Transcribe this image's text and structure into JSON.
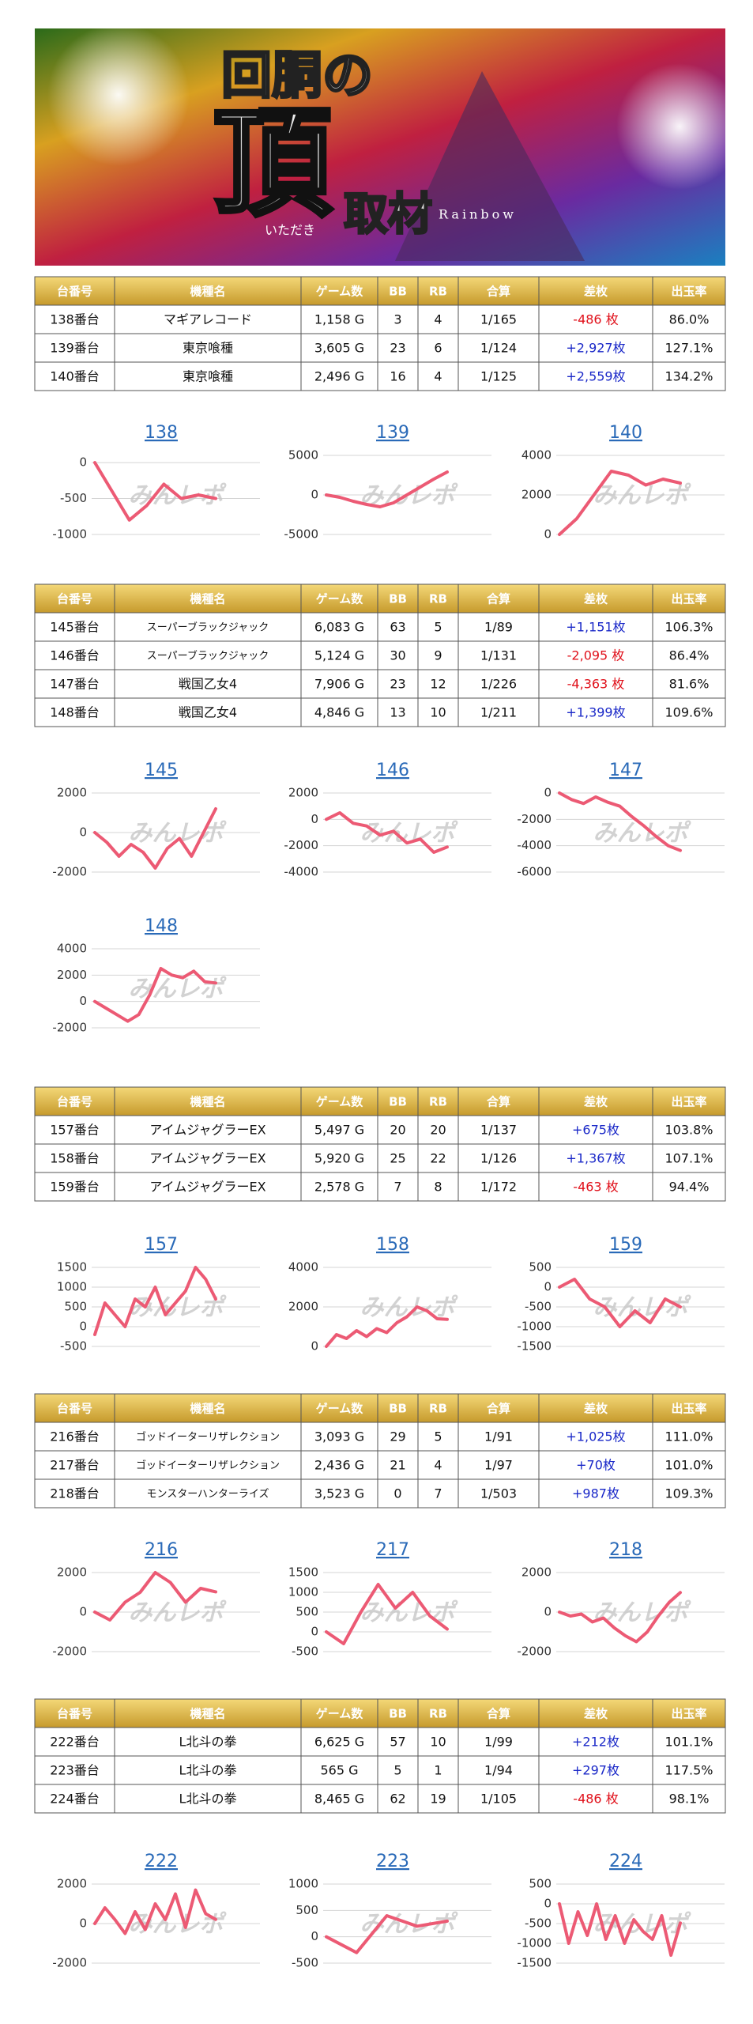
{
  "header": {
    "title_top": "回胴の",
    "title_main": "頂",
    "title_sub": "取材",
    "reading": "いただき",
    "brand": "Rainbow"
  },
  "table_header": [
    "台番号",
    "機種名",
    "ゲーム数",
    "BB",
    "RB",
    "合算",
    "差枚",
    "出玉率"
  ],
  "tables": [
    {
      "rows": [
        [
          "138番台",
          "マギアレコード",
          "1,158 G",
          "3",
          "4",
          "1/165",
          "-486 枚",
          "86.0%"
        ],
        [
          "139番台",
          "東京喰種",
          "3,605 G",
          "23",
          "6",
          "1/124",
          "+2,927枚",
          "127.1%"
        ],
        [
          "140番台",
          "東京喰種",
          "2,496 G",
          "16",
          "4",
          "1/125",
          "+2,559枚",
          "134.2%"
        ]
      ]
    },
    {
      "rows": [
        [
          "145番台",
          "スーパーブラックジャック",
          "6,083 G",
          "63",
          "5",
          "1/89",
          "+1,151枚",
          "106.3%"
        ],
        [
          "146番台",
          "スーパーブラックジャック",
          "5,124 G",
          "30",
          "9",
          "1/131",
          "-2,095 枚",
          "86.4%"
        ],
        [
          "147番台",
          "戦国乙女4",
          "7,906 G",
          "23",
          "12",
          "1/226",
          "-4,363 枚",
          "81.6%"
        ],
        [
          "148番台",
          "戦国乙女4",
          "4,846 G",
          "13",
          "10",
          "1/211",
          "+1,399枚",
          "109.6%"
        ]
      ]
    },
    {
      "rows": [
        [
          "157番台",
          "アイムジャグラーEX",
          "5,497 G",
          "20",
          "20",
          "1/137",
          "+675枚",
          "103.8%"
        ],
        [
          "158番台",
          "アイムジャグラーEX",
          "5,920 G",
          "25",
          "22",
          "1/126",
          "+1,367枚",
          "107.1%"
        ],
        [
          "159番台",
          "アイムジャグラーEX",
          "2,578 G",
          "7",
          "8",
          "1/172",
          "-463 枚",
          "94.4%"
        ]
      ]
    },
    {
      "rows": [
        [
          "216番台",
          "ゴッドイーターリザレクション",
          "3,093 G",
          "29",
          "5",
          "1/91",
          "+1,025枚",
          "111.0%"
        ],
        [
          "217番台",
          "ゴッドイーターリザレクション",
          "2,436 G",
          "21",
          "4",
          "1/97",
          "+70枚",
          "101.0%"
        ],
        [
          "218番台",
          "モンスターハンターライズ",
          "3,523 G",
          "0",
          "7",
          "1/503",
          "+987枚",
          "109.3%"
        ]
      ]
    },
    {
      "rows": [
        [
          "222番台",
          "L北斗の拳",
          "6,625 G",
          "57",
          "10",
          "1/99",
          "+212枚",
          "101.1%"
        ],
        [
          "223番台",
          "L北斗の拳",
          "565 G",
          "5",
          "1",
          "1/94",
          "+297枚",
          "117.5%"
        ],
        [
          "224番台",
          "L北斗の拳",
          "8,465 G",
          "62",
          "19",
          "1/105",
          "-486 枚",
          "98.1%"
        ]
      ]
    }
  ],
  "watermark": "みんレポ",
  "chart_data": [
    {
      "type": "line",
      "title": "138",
      "color": "#ec5a74",
      "grid": true,
      "ylim": [
        -1000,
        100
      ],
      "yticks": [
        0,
        -500,
        -1000
      ],
      "values": [
        0,
        -400,
        -800,
        -600,
        -300,
        -500,
        -450,
        -500
      ]
    },
    {
      "type": "line",
      "title": "139",
      "color": "#ec5a74",
      "grid": true,
      "ylim": [
        -5000,
        5000
      ],
      "yticks": [
        5000,
        0,
        -5000
      ],
      "values": [
        0,
        -300,
        -800,
        -1200,
        -1500,
        -1000,
        0,
        1000,
        2000,
        2900
      ]
    },
    {
      "type": "line",
      "title": "140",
      "color": "#ec5a74",
      "grid": true,
      "ylim": [
        0,
        4000
      ],
      "yticks": [
        4000,
        2000,
        0
      ],
      "values": [
        0,
        800,
        2000,
        3200,
        3000,
        2500,
        2800,
        2600
      ]
    },
    {
      "type": "line",
      "title": "145",
      "color": "#ec5a74",
      "grid": true,
      "ylim": [
        -2000,
        2000
      ],
      "yticks": [
        2000,
        0,
        -2000
      ],
      "values": [
        0,
        -500,
        -1200,
        -600,
        -1000,
        -1800,
        -800,
        -300,
        -1200,
        0,
        1200
      ]
    },
    {
      "type": "line",
      "title": "146",
      "color": "#ec5a74",
      "grid": true,
      "ylim": [
        -4000,
        2000
      ],
      "yticks": [
        2000,
        0,
        -2000,
        -4000
      ],
      "values": [
        0,
        500,
        -300,
        -500,
        -1200,
        -900,
        -1800,
        -1500,
        -2500,
        -2100
      ]
    },
    {
      "type": "line",
      "title": "147",
      "color": "#ec5a74",
      "grid": true,
      "ylim": [
        -6000,
        0
      ],
      "yticks": [
        0,
        -2000,
        -4000,
        -6000
      ],
      "values": [
        0,
        -500,
        -800,
        -300,
        -700,
        -1000,
        -1800,
        -2500,
        -3300,
        -4000,
        -4363
      ]
    },
    {
      "type": "line",
      "title": "148",
      "color": "#ec5a74",
      "grid": true,
      "ylim": [
        -2000,
        4000
      ],
      "yticks": [
        4000,
        2000,
        0,
        -2000
      ],
      "values": [
        0,
        -500,
        -1000,
        -1500,
        -1000,
        500,
        2500,
        2000,
        1800,
        2300,
        1500,
        1400
      ]
    },
    {
      "type": "line",
      "title": "157",
      "color": "#ec5a74",
      "grid": true,
      "ylim": [
        -500,
        1500
      ],
      "yticks": [
        1500,
        1000,
        500,
        0,
        -500
      ],
      "values": [
        -200,
        600,
        300,
        0,
        700,
        500,
        1000,
        300,
        600,
        900,
        1500,
        1200,
        700
      ]
    },
    {
      "type": "line",
      "title": "158",
      "color": "#ec5a74",
      "grid": true,
      "ylim": [
        0,
        4000
      ],
      "yticks": [
        4000,
        2000,
        0
      ],
      "values": [
        0,
        600,
        400,
        800,
        500,
        900,
        700,
        1200,
        1500,
        2000,
        1800,
        1400,
        1367
      ]
    },
    {
      "type": "line",
      "title": "159",
      "color": "#ec5a74",
      "grid": true,
      "ylim": [
        -1500,
        500
      ],
      "yticks": [
        500,
        0,
        -500,
        -1000,
        -1500
      ],
      "values": [
        0,
        200,
        -300,
        -500,
        -1000,
        -600,
        -900,
        -300,
        -500
      ]
    },
    {
      "type": "line",
      "title": "216",
      "color": "#ec5a74",
      "grid": true,
      "ylim": [
        -2000,
        2000
      ],
      "yticks": [
        2000,
        0,
        -2000
      ],
      "values": [
        0,
        -400,
        500,
        1000,
        2000,
        1500,
        500,
        1200,
        1025
      ]
    },
    {
      "type": "line",
      "title": "217",
      "color": "#ec5a74",
      "grid": true,
      "ylim": [
        -500,
        1500
      ],
      "yticks": [
        1500,
        1000,
        500,
        0,
        -500
      ],
      "values": [
        0,
        -300,
        500,
        1200,
        600,
        1000,
        400,
        70
      ]
    },
    {
      "type": "line",
      "title": "218",
      "color": "#ec5a74",
      "grid": true,
      "ylim": [
        -2000,
        2000
      ],
      "yticks": [
        2000,
        0,
        -2000
      ],
      "values": [
        0,
        -200,
        -100,
        -500,
        -300,
        -800,
        -1200,
        -1500,
        -1000,
        -200,
        500,
        987
      ]
    },
    {
      "type": "line",
      "title": "222",
      "color": "#ec5a74",
      "grid": true,
      "ylim": [
        -2000,
        2000
      ],
      "yticks": [
        2000,
        0,
        -2000
      ],
      "values": [
        0,
        800,
        200,
        -500,
        600,
        -300,
        1000,
        200,
        1500,
        -200,
        1700,
        500,
        212
      ]
    },
    {
      "type": "line",
      "title": "223",
      "color": "#ec5a74",
      "grid": true,
      "ylim": [
        -500,
        1000
      ],
      "yticks": [
        1000,
        500,
        0,
        -500
      ],
      "values": [
        0,
        -300,
        400,
        200,
        297
      ]
    },
    {
      "type": "line",
      "title": "224",
      "color": "#ec5a74",
      "grid": true,
      "ylim": [
        -1500,
        500
      ],
      "yticks": [
        500,
        0,
        -500,
        -1000,
        -1500
      ],
      "values": [
        0,
        -1000,
        -200,
        -800,
        0,
        -900,
        -300,
        -1000,
        -400,
        -700,
        -900,
        -300,
        -1300,
        -486
      ]
    }
  ]
}
